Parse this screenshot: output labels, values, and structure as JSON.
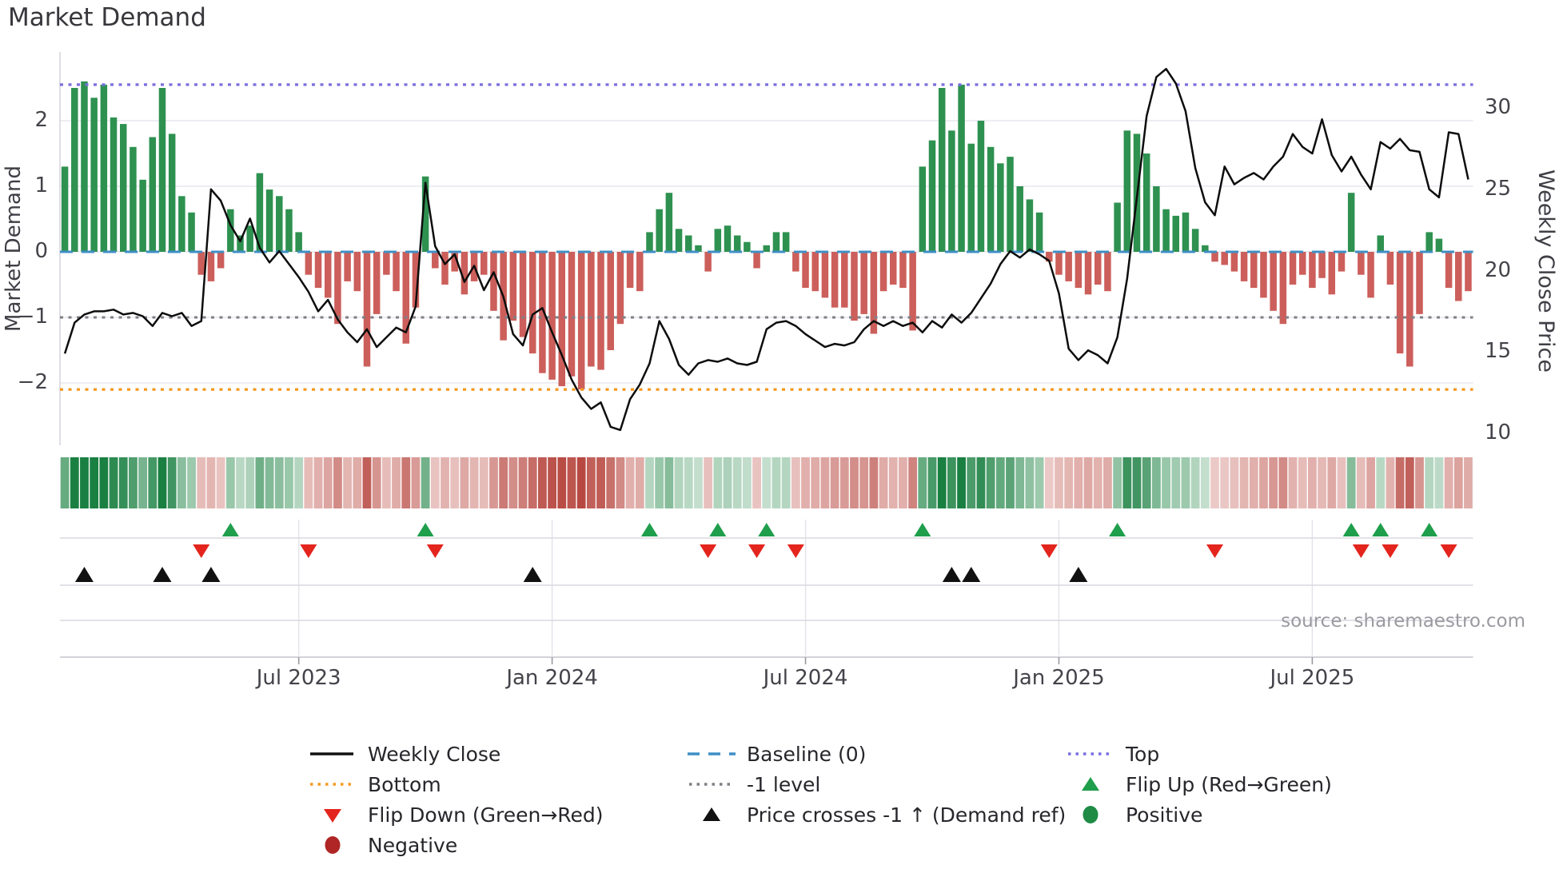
{
  "title": "Market Demand",
  "source_note": "source: sharemaestro.com",
  "axes": {
    "left_label": "Market Demand",
    "right_label": "Weekly Close Price",
    "left_ticks": [
      2,
      1,
      0,
      -1,
      -2
    ],
    "right_ticks": [
      30,
      25,
      20,
      15,
      10
    ],
    "x_ticks": [
      {
        "label": "Jul 2023",
        "week": 24
      },
      {
        "label": "Jan 2024",
        "week": 50
      },
      {
        "label": "Jul 2024",
        "week": 76
      },
      {
        "label": "Jan 2025",
        "week": 102
      },
      {
        "label": "Jul 2025",
        "week": 128
      }
    ]
  },
  "chart_data": {
    "type": "bar",
    "x_unit": "week",
    "n_weeks": 145,
    "ylim_left": [
      -2.9,
      2.9
    ],
    "ylim_right": [
      10,
      33
    ],
    "grid": "horizontal",
    "series": [
      {
        "name": "Market Demand",
        "type": "bar",
        "axis": "left",
        "values": [
          1.3,
          2.5,
          2.6,
          2.35,
          2.55,
          2.05,
          1.95,
          1.6,
          1.1,
          1.75,
          2.5,
          1.8,
          0.85,
          0.6,
          -0.35,
          -0.45,
          -0.25,
          0.65,
          0.25,
          0.4,
          1.2,
          0.95,
          0.85,
          0.65,
          0.3,
          -0.35,
          -0.55,
          -0.7,
          -1.1,
          -0.45,
          -0.6,
          -1.75,
          -0.95,
          -0.35,
          -0.6,
          -1.4,
          -0.85,
          1.15,
          -0.25,
          -0.5,
          -0.3,
          -0.65,
          -0.45,
          -0.35,
          -0.9,
          -1.35,
          -1.05,
          -1.3,
          -1.55,
          -1.85,
          -1.95,
          -2.05,
          -1.9,
          -2.1,
          -1.75,
          -1.8,
          -1.5,
          -1.1,
          -0.55,
          -0.6,
          0.3,
          0.65,
          0.9,
          0.35,
          0.25,
          0.1,
          -0.3,
          0.35,
          0.4,
          0.25,
          0.15,
          -0.25,
          0.1,
          0.3,
          0.3,
          -0.3,
          -0.55,
          -0.6,
          -0.7,
          -0.85,
          -0.85,
          -1.05,
          -0.95,
          -1.25,
          -0.6,
          -0.5,
          -0.55,
          -1.2,
          1.3,
          1.7,
          2.5,
          1.85,
          2.55,
          1.65,
          2.0,
          1.6,
          1.35,
          1.45,
          1.0,
          0.8,
          0.6,
          -0.15,
          -0.35,
          -0.45,
          -0.55,
          -0.65,
          -0.5,
          -0.6,
          0.75,
          1.85,
          1.8,
          1.5,
          1.0,
          0.65,
          0.55,
          0.6,
          0.35,
          0.1,
          -0.15,
          -0.2,
          -0.3,
          -0.45,
          -0.55,
          -0.7,
          -0.9,
          -1.1,
          -0.5,
          -0.35,
          -0.55,
          -0.4,
          -0.65,
          -0.3,
          0.9,
          -0.35,
          -0.7,
          0.25,
          -0.5,
          -1.55,
          -1.75,
          -0.95,
          0.3,
          0.2,
          -0.55,
          -0.75,
          -0.6
        ]
      },
      {
        "name": "Weekly Close",
        "type": "line",
        "axis": "right",
        "values": [
          14.9,
          16.8,
          17.3,
          17.5,
          17.5,
          17.6,
          17.3,
          17.4,
          17.2,
          16.6,
          17.4,
          17.2,
          17.4,
          16.6,
          16.9,
          25.0,
          24.3,
          22.8,
          21.8,
          23.2,
          21.4,
          20.5,
          21.2,
          20.4,
          19.6,
          18.7,
          17.5,
          18.2,
          17.0,
          16.2,
          15.6,
          16.4,
          15.3,
          15.9,
          16.5,
          16.2,
          17.8,
          25.4,
          21.5,
          20.4,
          21.0,
          19.3,
          20.3,
          18.8,
          19.9,
          18.4,
          16.1,
          15.4,
          17.3,
          17.7,
          16.2,
          14.8,
          13.3,
          12.2,
          11.5,
          11.9,
          10.4,
          10.2,
          12.1,
          13.0,
          14.3,
          16.9,
          15.8,
          14.2,
          13.6,
          14.3,
          14.5,
          14.4,
          14.6,
          14.3,
          14.2,
          14.4,
          16.4,
          16.8,
          16.9,
          16.6,
          16.1,
          15.7,
          15.3,
          15.5,
          15.4,
          15.6,
          16.4,
          16.9,
          16.6,
          16.9,
          16.6,
          16.8,
          16.2,
          16.9,
          16.5,
          17.3,
          16.8,
          17.4,
          18.3,
          19.2,
          20.4,
          21.2,
          20.8,
          21.3,
          21.0,
          20.6,
          18.6,
          15.2,
          14.5,
          15.1,
          14.8,
          14.3,
          15.9,
          19.5,
          24.5,
          29.5,
          31.9,
          32.4,
          31.5,
          29.8,
          26.3,
          24.2,
          23.4,
          26.4,
          25.3,
          25.7,
          26.0,
          25.6,
          26.4,
          27.0,
          28.4,
          27.6,
          27.2,
          29.3,
          27.1,
          26.1,
          27.0,
          25.9,
          25.0,
          27.9,
          27.5,
          28.1,
          27.4,
          27.3,
          25.0,
          24.5,
          28.5,
          28.4,
          25.6
        ]
      }
    ],
    "reference_lines": {
      "baseline": 0,
      "top": 2.55,
      "minus1": -1,
      "bottom": -2.1
    },
    "markers": {
      "flip_up_weeks": [
        17,
        37,
        60,
        67,
        72,
        88,
        108,
        132,
        135,
        140
      ],
      "flip_down_weeks": [
        14,
        25,
        38,
        66,
        71,
        75,
        101,
        118,
        133,
        136,
        142
      ],
      "price_cross_weeks": [
        2,
        10,
        15,
        48,
        91,
        93,
        104
      ]
    },
    "heatmap": "demand-colored strip, one cell per week"
  },
  "colors": {
    "bar_positive": "#2e9150",
    "bar_negative": "#cc5f5b",
    "price_line": "#0d0d0d",
    "baseline": "#3f8fc5",
    "top_line": "#7a6ee0",
    "minus1_line": "#7f7f87",
    "bottom_line": "#f59a23",
    "flip_up": "#1f9e4c",
    "flip_down": "#e3251d",
    "price_cross": "#111111",
    "positive_dot": "#1f8b45",
    "negative_dot": "#b02525"
  },
  "legend": {
    "col1": [
      {
        "label": "Weekly Close"
      },
      {
        "label": "Bottom"
      },
      {
        "label": "Flip Down (Green→Red)"
      },
      {
        "label": "Negative"
      }
    ],
    "col2": [
      {
        "label": "Baseline (0)"
      },
      {
        "label": "-1 level"
      },
      {
        "label": "Price crosses -1 ↑ (Demand ref)"
      }
    ],
    "col3": [
      {
        "label": "Top"
      },
      {
        "label": "Flip Up (Red→Green)"
      },
      {
        "label": "Positive"
      }
    ]
  }
}
